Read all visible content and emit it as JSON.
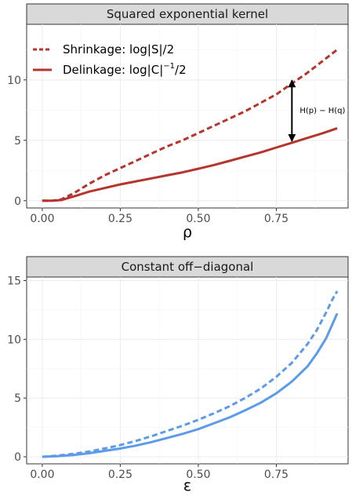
{
  "chart_data": [
    {
      "type": "line",
      "title": "Squared exponential kernel",
      "xlabel": "ρ",
      "ylabel": "",
      "xlim": [
        -0.05,
        0.98
      ],
      "ylim": [
        -0.6,
        14.6
      ],
      "x_ticks": [
        0.0,
        0.25,
        0.5,
        0.75
      ],
      "x_tick_labels": [
        "0.00",
        "0.25",
        "0.50",
        "0.75"
      ],
      "y_ticks": [
        0,
        5,
        10
      ],
      "y_tick_labels": [
        "0",
        "5",
        "10"
      ],
      "grid": true,
      "legend_position": "top-left",
      "colors": {
        "series": "#b5352c"
      },
      "series": [
        {
          "name": "Shrinkage: log|S|/2",
          "name_main": "Shrinkage: log|S|/2",
          "dash": "dashed",
          "x": [
            0.0,
            0.03,
            0.06,
            0.1,
            0.15,
            0.2,
            0.25,
            0.3,
            0.35,
            0.4,
            0.45,
            0.5,
            0.55,
            0.6,
            0.65,
            0.7,
            0.75,
            0.8,
            0.85,
            0.9,
            0.945
          ],
          "y": [
            0.0,
            0.0,
            0.1,
            0.6,
            1.4,
            2.1,
            2.7,
            3.3,
            3.9,
            4.5,
            5.0,
            5.6,
            6.2,
            6.8,
            7.4,
            8.1,
            8.8,
            9.7,
            10.6,
            11.6,
            12.5
          ]
        },
        {
          "name": "Delinkage: log|C|^-1/2",
          "name_main": "Delinkage: log|C|",
          "name_sup": "−1",
          "name_tail": "/2",
          "dash": "solid",
          "x": [
            0.0,
            0.03,
            0.06,
            0.1,
            0.15,
            0.2,
            0.25,
            0.3,
            0.35,
            0.4,
            0.45,
            0.5,
            0.55,
            0.6,
            0.65,
            0.7,
            0.75,
            0.8,
            0.85,
            0.9,
            0.945
          ],
          "y": [
            0.0,
            0.0,
            0.05,
            0.35,
            0.75,
            1.05,
            1.35,
            1.6,
            1.85,
            2.1,
            2.35,
            2.65,
            2.95,
            3.3,
            3.65,
            4.0,
            4.4,
            4.8,
            5.2,
            5.6,
            6.0
          ]
        }
      ],
      "annotation": {
        "text": "H(p) − H(q)",
        "x": 0.8,
        "y_from": 4.8,
        "y_to": 10.1
      }
    },
    {
      "type": "line",
      "title": "Constant off−diagonal",
      "xlabel": "ε",
      "ylabel": "",
      "xlim": [
        -0.05,
        0.98
      ],
      "ylim": [
        -0.6,
        15.3
      ],
      "x_ticks": [
        0.0,
        0.25,
        0.5,
        0.75
      ],
      "x_tick_labels": [
        "0.00",
        "0.25",
        "0.50",
        "0.75"
      ],
      "y_ticks": [
        0,
        5,
        10,
        15
      ],
      "y_tick_labels": [
        "0",
        "5",
        "10",
        "15"
      ],
      "grid": true,
      "colors": {
        "series": "#5b9be8"
      },
      "series": [
        {
          "dash": "dashed",
          "x": [
            0.0,
            0.05,
            0.1,
            0.15,
            0.2,
            0.25,
            0.3,
            0.35,
            0.4,
            0.45,
            0.5,
            0.55,
            0.6,
            0.65,
            0.7,
            0.75,
            0.8,
            0.85,
            0.88,
            0.91,
            0.93,
            0.945
          ],
          "y": [
            0.0,
            0.1,
            0.25,
            0.45,
            0.7,
            1.0,
            1.35,
            1.75,
            2.2,
            2.65,
            3.15,
            3.7,
            4.3,
            5.0,
            5.8,
            6.8,
            8.0,
            9.6,
            10.8,
            12.3,
            13.4,
            14.1
          ]
        },
        {
          "dash": "solid",
          "x": [
            0.0,
            0.05,
            0.1,
            0.15,
            0.2,
            0.25,
            0.3,
            0.35,
            0.4,
            0.45,
            0.5,
            0.55,
            0.6,
            0.65,
            0.7,
            0.75,
            0.8,
            0.85,
            0.88,
            0.91,
            0.93,
            0.945
          ],
          "y": [
            0.0,
            0.05,
            0.15,
            0.3,
            0.5,
            0.7,
            0.95,
            1.25,
            1.6,
            1.95,
            2.35,
            2.85,
            3.35,
            3.95,
            4.6,
            5.4,
            6.4,
            7.7,
            8.8,
            10.1,
            11.3,
            12.2
          ]
        }
      ]
    }
  ]
}
